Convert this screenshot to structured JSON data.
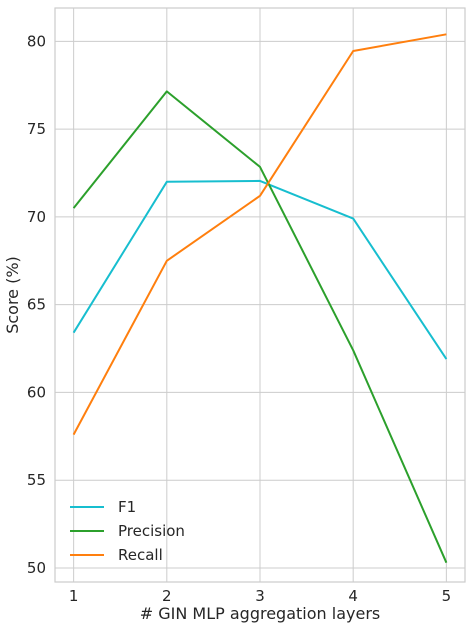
{
  "chart_data": {
    "type": "line",
    "xlabel": "# GIN MLP aggregation layers",
    "ylabel": "Score (%)",
    "x": [
      1,
      2,
      3,
      4,
      5
    ],
    "xticks": [
      "1",
      "2",
      "3",
      "4",
      "5"
    ],
    "xlim": [
      0.8,
      5.2
    ],
    "ylim": [
      49.2,
      81.9
    ],
    "yticks": [
      50,
      55,
      60,
      65,
      70,
      75,
      80
    ],
    "grid": true,
    "legend_position": "lower-left",
    "series": [
      {
        "name": "F1",
        "color": "#17becf",
        "values": [
          63.4,
          72.0,
          72.05,
          69.9,
          61.9
        ]
      },
      {
        "name": "Precision",
        "color": "#2ca02c",
        "values": [
          70.5,
          77.15,
          72.85,
          62.4,
          50.3
        ]
      },
      {
        "name": "Recall",
        "color": "#ff7f0e",
        "values": [
          57.6,
          67.5,
          71.2,
          79.45,
          80.4
        ]
      }
    ]
  }
}
